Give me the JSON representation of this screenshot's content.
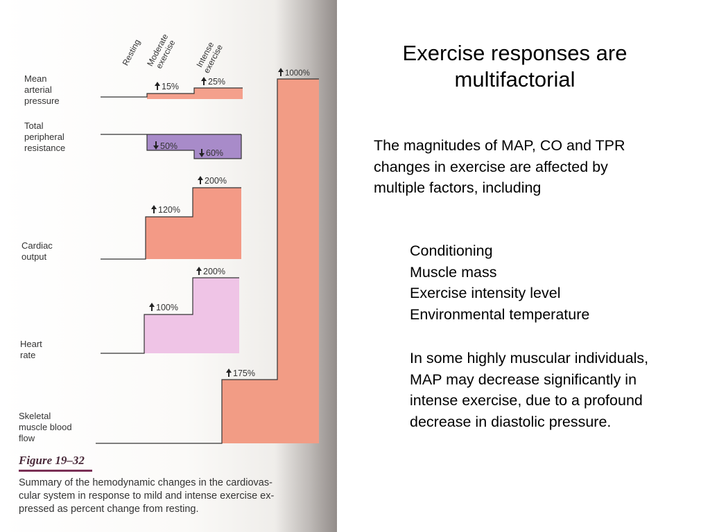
{
  "slide": {
    "title": "Exercise responses are\nmultifactorial",
    "intro": "The magnitudes of MAP, CO and TPR changes in exercise are affected by multiple factors, including",
    "factors": [
      "Conditioning",
      "Muscle mass",
      "Exercise intensity level",
      "Environmental temperature"
    ],
    "note": "In some highly muscular individuals, MAP may decrease significantly in intense exercise, due to a profound decrease in diastolic pressure."
  },
  "figure": {
    "columns": [
      "Resting",
      "Moderate\nexercise",
      "Intense\nexercise"
    ],
    "rows": [
      {
        "label": "Mean\narterial\npressure",
        "moderate": "15%",
        "intense": "25%",
        "direction": "up",
        "color": "#f4a08c"
      },
      {
        "label": "Total\nperipheral\nresistance",
        "moderate": "50%",
        "intense": "60%",
        "direction": "down",
        "color": "#a88bc9"
      },
      {
        "label": "Cardiac\noutput",
        "moderate": "120%",
        "intense": "200%",
        "direction": "up",
        "color": "#f39a86"
      },
      {
        "label": "Heart\nrate",
        "moderate": "100%",
        "intense": "200%",
        "direction": "up",
        "color": "#efc4e6"
      },
      {
        "label": "Skeletal\nmuscle blood\nflow",
        "moderate": "175%",
        "intense": "1000%",
        "direction": "up",
        "color": "#f29c85"
      }
    ],
    "caption_title": "Figure 19–32",
    "caption_text": "Summary of the hemodynamic changes in the cardiovas-\ncular system in response to mild and intense exercise ex-\npressed as percent change from resting."
  }
}
